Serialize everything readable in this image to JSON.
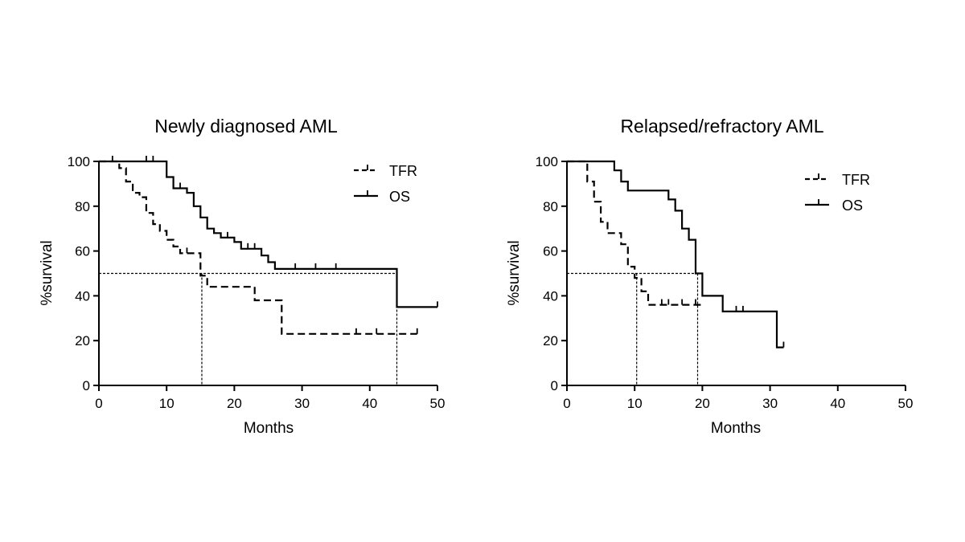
{
  "chart_data": [
    {
      "type": "line",
      "title": "Newly diagnosed AML",
      "xlabel": "Months",
      "ylabel": "%survival",
      "xlim": [
        0,
        50
      ],
      "ylim": [
        0,
        100
      ],
      "xticks": [
        0,
        10,
        20,
        30,
        40,
        50
      ],
      "yticks": [
        0,
        20,
        40,
        60,
        80,
        100
      ],
      "legend_position": "top-right",
      "median_reference": {
        "y": 50,
        "x_values": [
          15.2,
          44
        ]
      },
      "series": [
        {
          "name": "TFR",
          "style": "dashed",
          "steps": [
            [
              0,
              100
            ],
            [
              3,
              100
            ],
            [
              3,
              97
            ],
            [
              4,
              97
            ],
            [
              4,
              91
            ],
            [
              5,
              91
            ],
            [
              5,
              86
            ],
            [
              6,
              86
            ],
            [
              6,
              84
            ],
            [
              7,
              84
            ],
            [
              7,
              77
            ],
            [
              8,
              77
            ],
            [
              8,
              72
            ],
            [
              9,
              72
            ],
            [
              9,
              69
            ],
            [
              10,
              69
            ],
            [
              10,
              65
            ],
            [
              11,
              65
            ],
            [
              11,
              62
            ],
            [
              12,
              62
            ],
            [
              12,
              59
            ],
            [
              15,
              59
            ],
            [
              15,
              49
            ],
            [
              16,
              49
            ],
            [
              16,
              44
            ],
            [
              23,
              44
            ],
            [
              23,
              38
            ],
            [
              27,
              38
            ],
            [
              27,
              23
            ],
            [
              47,
              23
            ]
          ],
          "censored": [
            [
              13,
              59
            ],
            [
              38,
              23
            ],
            [
              41,
              23
            ],
            [
              47,
              23
            ]
          ]
        },
        {
          "name": "OS",
          "style": "solid",
          "steps": [
            [
              0,
              100
            ],
            [
              10,
              100
            ],
            [
              10,
              93
            ],
            [
              11,
              93
            ],
            [
              11,
              88
            ],
            [
              13,
              88
            ],
            [
              13,
              86
            ],
            [
              14,
              86
            ],
            [
              14,
              80
            ],
            [
              15,
              80
            ],
            [
              15,
              75
            ],
            [
              16,
              75
            ],
            [
              16,
              70
            ],
            [
              17,
              70
            ],
            [
              17,
              68
            ],
            [
              18,
              68
            ],
            [
              18,
              66
            ],
            [
              20,
              66
            ],
            [
              20,
              64
            ],
            [
              21,
              64
            ],
            [
              21,
              61
            ],
            [
              24,
              61
            ],
            [
              24,
              58
            ],
            [
              25,
              58
            ],
            [
              25,
              55
            ],
            [
              26,
              55
            ],
            [
              26,
              52
            ],
            [
              44,
              52
            ],
            [
              44,
              35
            ],
            [
              50,
              35
            ]
          ],
          "censored": [
            [
              2,
              100
            ],
            [
              7,
              100
            ],
            [
              8,
              100
            ],
            [
              12,
              88
            ],
            [
              19,
              66
            ],
            [
              22,
              61
            ],
            [
              23,
              61
            ],
            [
              29,
              52
            ],
            [
              32,
              52
            ],
            [
              35,
              52
            ],
            [
              50,
              35
            ]
          ]
        }
      ]
    },
    {
      "type": "line",
      "title": "Relapsed/refractory AML",
      "xlabel": "Months",
      "ylabel": "%survival",
      "xlim": [
        0,
        50
      ],
      "ylim": [
        0,
        100
      ],
      "xticks": [
        0,
        10,
        20,
        30,
        40,
        50
      ],
      "yticks": [
        0,
        20,
        40,
        60,
        80,
        100
      ],
      "legend_position": "top-right",
      "median_reference": {
        "y": 50,
        "x_values": [
          10.3,
          19.3
        ]
      },
      "series": [
        {
          "name": "TFR",
          "style": "dashed",
          "steps": [
            [
              0,
              100
            ],
            [
              3,
              100
            ],
            [
              3,
              91
            ],
            [
              4,
              91
            ],
            [
              4,
              82
            ],
            [
              5,
              82
            ],
            [
              5,
              73
            ],
            [
              6,
              73
            ],
            [
              6,
              68
            ],
            [
              8,
              68
            ],
            [
              8,
              63
            ],
            [
              9,
              63
            ],
            [
              9,
              53
            ],
            [
              10,
              53
            ],
            [
              10,
              48
            ],
            [
              11,
              48
            ],
            [
              11,
              42
            ],
            [
              12,
              42
            ],
            [
              12,
              36
            ],
            [
              20,
              36
            ]
          ],
          "censored": [
            [
              14,
              36
            ],
            [
              15,
              36
            ],
            [
              17,
              36
            ],
            [
              19,
              36
            ]
          ]
        },
        {
          "name": "OS",
          "style": "solid",
          "steps": [
            [
              0,
              100
            ],
            [
              7,
              100
            ],
            [
              7,
              96
            ],
            [
              8,
              96
            ],
            [
              8,
              91
            ],
            [
              9,
              91
            ],
            [
              9,
              87
            ],
            [
              15,
              87
            ],
            [
              15,
              83
            ],
            [
              16,
              83
            ],
            [
              16,
              78
            ],
            [
              17,
              78
            ],
            [
              17,
              70
            ],
            [
              18,
              70
            ],
            [
              18,
              65
            ],
            [
              19,
              65
            ],
            [
              19,
              50
            ],
            [
              20,
              50
            ],
            [
              20,
              40
            ],
            [
              23,
              40
            ],
            [
              23,
              33
            ],
            [
              31,
              33
            ],
            [
              31,
              17
            ],
            [
              32,
              17
            ]
          ],
          "censored": [
            [
              25,
              33
            ],
            [
              26,
              33
            ],
            [
              32,
              17
            ]
          ]
        }
      ]
    }
  ]
}
